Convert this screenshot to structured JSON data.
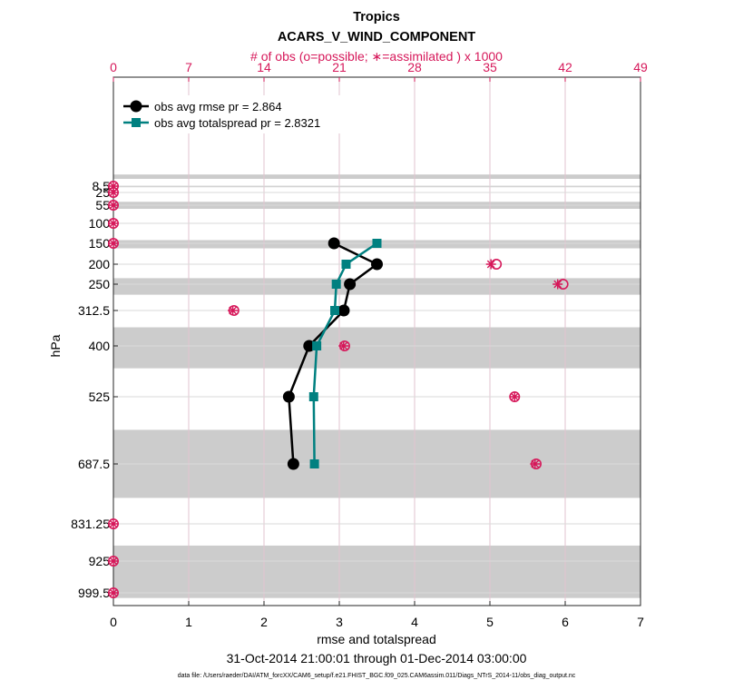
{
  "title_line1": "Tropics",
  "title_line2": "ACARS_V_WIND_COMPONENT",
  "top_axis_label": "# of obs (o=possible; ∗=assimilated ) x 1000",
  "y_axis_label": "hPa",
  "x_axis_label": "rmse and totalspread",
  "date_range": "31-Oct-2014 21:00:01 through 01-Dec-2014 03:00:00",
  "data_file": "data file: /Users/raeder/DAI/ATM_forcXX/CAM6_setup/f.e21.FHIST_BGC.f09_025.CAM6assim.011/Diags_NTrS_2014-11/obs_diag_output.nc",
  "colors": {
    "rmse": "#000000",
    "spread": "#008080",
    "obs": "#d6185a",
    "band": "#cccccc",
    "grid": "#e3e3e3"
  },
  "chart_data": {
    "type": "line",
    "orientation": "vertical-profile",
    "y_reversed": true,
    "xlim": [
      0,
      7
    ],
    "x_ticks": [
      0,
      1,
      2,
      3,
      4,
      5,
      6,
      7
    ],
    "top_xlim": [
      0,
      49
    ],
    "top_ticks": [
      0,
      7,
      14,
      21,
      28,
      35,
      42,
      49
    ],
    "levels": [
      8.5,
      25,
      55,
      100,
      150,
      200,
      250,
      312.5,
      400,
      525,
      687.5,
      831.25,
      925,
      999.5
    ],
    "level_labels": [
      "8.5",
      "25",
      "55",
      "100",
      "150",
      "200",
      "250",
      "312.5",
      "400",
      "525",
      "687.5",
      "831.25",
      "925",
      "999.5"
    ],
    "series": [
      {
        "name": "obs avg rmse pr = 2.864",
        "marker": "circle",
        "points": [
          [
            2.93,
            150
          ],
          [
            3.5,
            200
          ],
          [
            3.14,
            250
          ],
          [
            3.06,
            312.5
          ],
          [
            2.6,
            400
          ],
          [
            2.33,
            525
          ],
          [
            2.39,
            687.5
          ]
        ]
      },
      {
        "name": "obs avg totalspread pr = 2.8321",
        "marker": "square",
        "points": [
          [
            3.5,
            150
          ],
          [
            3.09,
            200
          ],
          [
            2.96,
            250
          ],
          [
            2.94,
            312.5
          ],
          [
            2.7,
            400
          ],
          [
            2.66,
            525
          ],
          [
            2.67,
            687.5
          ]
        ]
      }
    ],
    "obs_counts_thousands": {
      "possible": [
        [
          0,
          8.5
        ],
        [
          0,
          25
        ],
        [
          0,
          55
        ],
        [
          0,
          100
        ],
        [
          0,
          150
        ],
        [
          35.6,
          200
        ],
        [
          41.8,
          250
        ],
        [
          11.2,
          312.5
        ],
        [
          21.5,
          400
        ],
        [
          37.3,
          525
        ],
        [
          39.3,
          687.5
        ],
        [
          0,
          831.25
        ],
        [
          0,
          925
        ],
        [
          0,
          999.5
        ]
      ],
      "assimilated": [
        [
          0,
          8.5
        ],
        [
          0,
          25
        ],
        [
          0,
          55
        ],
        [
          0,
          100
        ],
        [
          0,
          150
        ],
        [
          35.1,
          200
        ],
        [
          41.3,
          250
        ],
        [
          11.1,
          312.5
        ],
        [
          21.4,
          400
        ],
        [
          37.3,
          525
        ],
        [
          39.2,
          687.5
        ],
        [
          0,
          831.25
        ],
        [
          0,
          925
        ],
        [
          0,
          999.5
        ]
      ]
    },
    "shaded_layers_hPa": [
      [
        0.5,
        3.5
      ],
      [
        9,
        11
      ],
      [
        47,
        64
      ],
      [
        142,
        162
      ],
      [
        235,
        275
      ],
      [
        354,
        455
      ],
      [
        605,
        769
      ],
      [
        886,
        1013
      ]
    ]
  }
}
